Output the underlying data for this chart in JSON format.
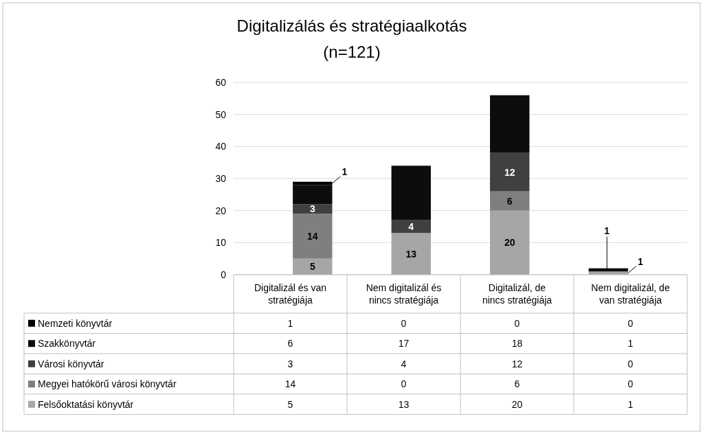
{
  "chart_data": {
    "type": "bar",
    "title": "Digitalizálás és stratégiaalkotás",
    "subtitle": "(n=121)",
    "categories": [
      "Digitalizál és van stratégiája",
      "Nem digitalizál és nincs stratégiája",
      "Digitalizál, de nincs stratégiája",
      "Nem digitalizál, de van stratégiája"
    ],
    "stacked": true,
    "ylim": [
      0,
      60
    ],
    "yticks": [
      0,
      10,
      20,
      30,
      40,
      50,
      60
    ],
    "grid": "y",
    "legend": "bottom",
    "data_labels": true,
    "series": [
      {
        "name": "Felsőoktatási könyvtár",
        "color": "#a6a6a6",
        "values": [
          5,
          13,
          20,
          1
        ],
        "value_labels": [
          "5",
          "13",
          "20",
          "1"
        ]
      },
      {
        "name": "Megyei hatókörű városi könyvtár",
        "color": "#7f7f7f",
        "values": [
          14,
          0,
          6,
          0
        ],
        "value_labels": [
          "14",
          "0",
          "6",
          "0"
        ]
      },
      {
        "name": "Városi könyvtár",
        "color": "#404040",
        "values": [
          3,
          4,
          12,
          0
        ],
        "value_labels": [
          "3",
          "4",
          "12",
          "0"
        ]
      },
      {
        "name": "Szakkönyvtár",
        "color": "#0d0d0d",
        "values": [
          6,
          17,
          18,
          1
        ],
        "value_labels": [
          "6",
          "17",
          "18",
          "1"
        ]
      },
      {
        "name": "Nemzeti könyvtár",
        "color": "#000000",
        "values": [
          1,
          0,
          0,
          0
        ],
        "value_labels": [
          "1",
          "0",
          "0",
          "0"
        ]
      }
    ]
  }
}
